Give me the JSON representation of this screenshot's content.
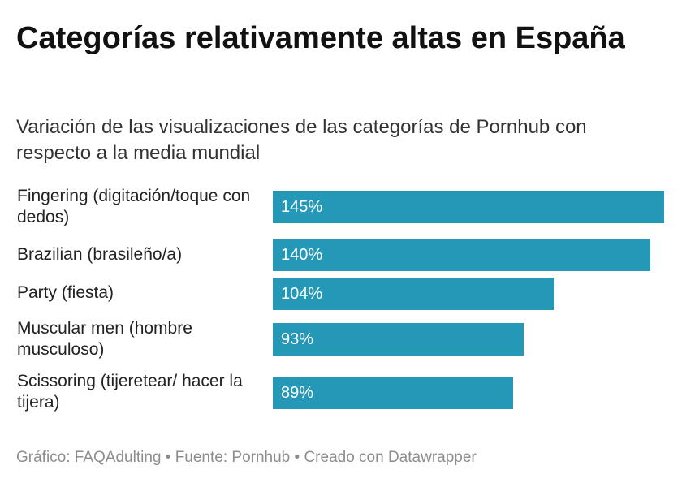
{
  "header": {
    "title": "Categorías relativamente altas en España",
    "subtitle": "Variación de las visualizaciones de las categorías de Pornhub con respecto a la media mundial"
  },
  "chart_data": {
    "type": "bar",
    "orientation": "horizontal",
    "title": "Categorías relativamente altas en España",
    "subtitle": "Variación de las visualizaciones de las categorías de Pornhub con respecto a la media mundial",
    "categories": [
      "Fingering (digitación/toque con dedos)",
      "Brazilian (brasileño/a)",
      "Party (fiesta)",
      "Muscular men (hombre musculoso)",
      "Scissoring (tijeretear/ hacer la tijera)"
    ],
    "values": [
      145,
      140,
      104,
      93,
      89
    ],
    "value_labels": [
      "145%",
      "140%",
      "104%",
      "93%",
      "89%"
    ],
    "unit": "%",
    "xlim": [
      0,
      145
    ],
    "bar_color": "#2598b7",
    "grid": false,
    "legend": "none"
  },
  "footer": {
    "credit": "Gráfico: FAQAdulting",
    "separator": " • ",
    "source": "Fuente: Pornhub",
    "tool": "Creado con Datawrapper"
  }
}
